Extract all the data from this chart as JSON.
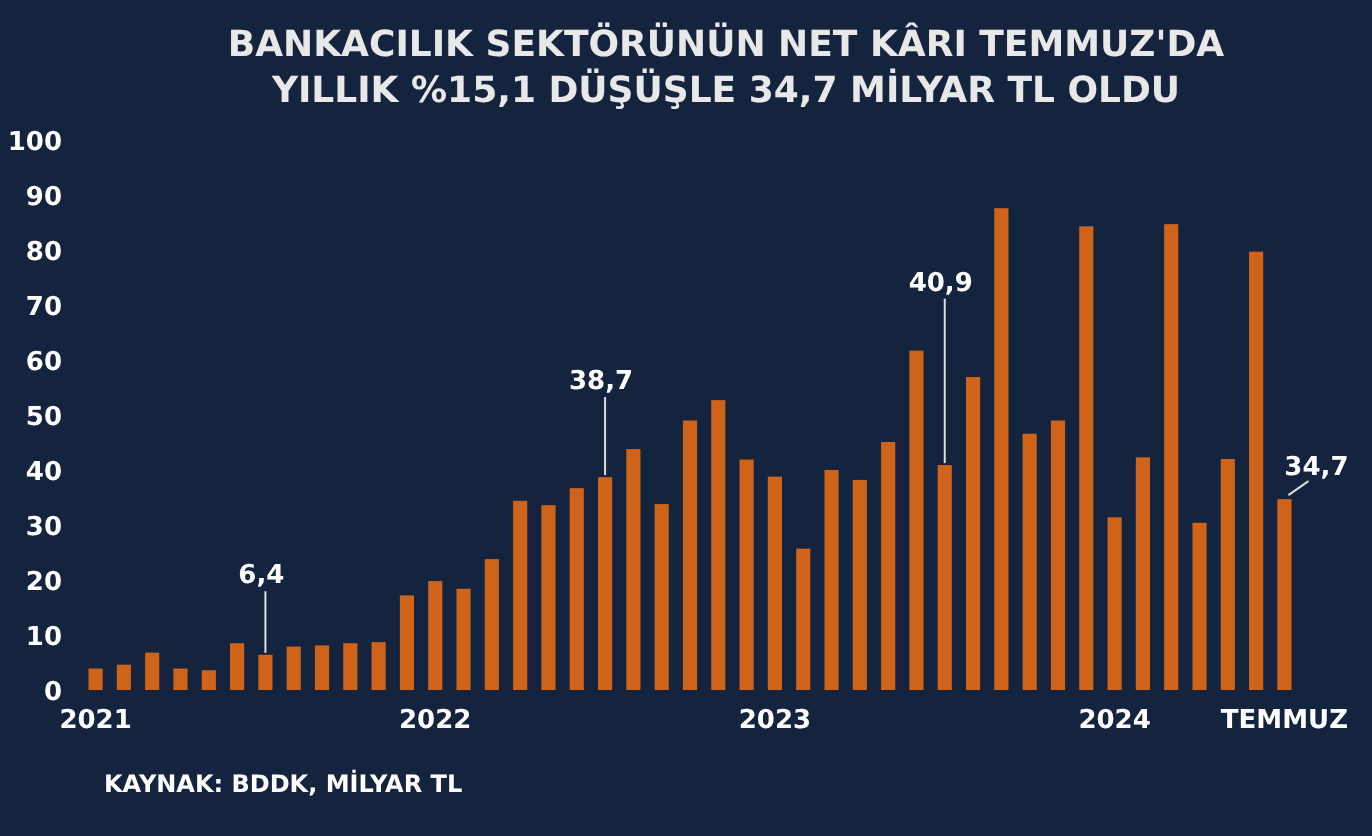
{
  "chart_data": {
    "type": "bar",
    "title": "BANKACILIK SEKTÖRÜNÜN NET KÂRI TEMMUZ'DA\nYILLIK %15,1 DÜŞÜŞLE 34,7 MİLYAR TL OLDU",
    "categories": [
      "2021",
      null,
      null,
      null,
      null,
      null,
      null,
      null,
      null,
      null,
      null,
      null,
      "2022",
      null,
      null,
      null,
      null,
      null,
      null,
      null,
      null,
      null,
      null,
      null,
      "2023",
      null,
      null,
      null,
      null,
      null,
      null,
      null,
      null,
      null,
      null,
      null,
      "2024",
      null,
      null,
      null,
      null,
      null,
      "TEMMUZ"
    ],
    "values": [
      3.9,
      4.6,
      6.8,
      3.9,
      3.6,
      8.5,
      6.4,
      7.9,
      8.1,
      8.5,
      8.7,
      17.2,
      19.8,
      18.4,
      23.8,
      34.4,
      33.6,
      36.7,
      38.7,
      43.8,
      33.8,
      49.0,
      52.7,
      41.9,
      38.8,
      25.7,
      40.0,
      38.2,
      45.1,
      61.7,
      40.9,
      56.9,
      87.6,
      46.6,
      49.0,
      84.3,
      31.4,
      42.3,
      84.7,
      30.4,
      42.0,
      79.7,
      34.7
    ],
    "value_labels": [
      null,
      null,
      null,
      null,
      null,
      null,
      "6,4",
      null,
      null,
      null,
      null,
      null,
      null,
      null,
      null,
      null,
      null,
      null,
      "38,7",
      null,
      null,
      null,
      null,
      null,
      null,
      null,
      null,
      null,
      null,
      null,
      "40,9",
      null,
      null,
      null,
      null,
      null,
      null,
      null,
      null,
      null,
      null,
      null,
      "34,7"
    ],
    "color": "#d0631a",
    "ylim": [
      0,
      100
    ],
    "yticks": [
      0,
      10,
      20,
      30,
      40,
      50,
      60,
      70,
      80,
      90,
      100
    ],
    "grid": false,
    "annotations": [
      "KAYNAK: BDDK, MİLYAR TL"
    ]
  }
}
